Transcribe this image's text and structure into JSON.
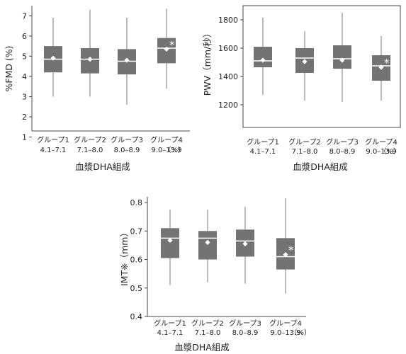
{
  "chart_data": [
    {
      "type": "box",
      "id": "fmd",
      "ylabel": "%FMD (%)",
      "xlabel": "血漿DHA組成",
      "unit_suffix": "（%）",
      "ylim": [
        1.3,
        7.5
      ],
      "yticks": [
        "1",
        "2",
        "3",
        "4",
        "5",
        "6",
        "7"
      ],
      "categories": [
        {
          "name": "グループ1",
          "range": "4.1–7.1"
        },
        {
          "name": "グループ2",
          "range": "7.1–8.0"
        },
        {
          "name": "グループ3",
          "range": "8.0–8.9"
        },
        {
          "name": "グループ4",
          "range": "9.0–13.9"
        }
      ],
      "boxes": [
        {
          "min": 3.0,
          "q1": 4.2,
          "median": 4.85,
          "q3": 5.5,
          "max": 6.9,
          "mean": 4.9,
          "star": ""
        },
        {
          "min": 3.0,
          "q1": 4.15,
          "median": 4.85,
          "q3": 5.4,
          "max": 7.3,
          "mean": 4.85,
          "star": ""
        },
        {
          "min": 2.6,
          "q1": 4.1,
          "median": 4.75,
          "q3": 5.35,
          "max": 6.9,
          "mean": 4.8,
          "star": ""
        },
        {
          "min": 3.4,
          "q1": 4.65,
          "median": 5.4,
          "q3": 5.9,
          "max": 7.35,
          "mean": 5.35,
          "star": "*"
        }
      ]
    },
    {
      "type": "box",
      "id": "pwv",
      "ylabel": "PWV（mm/秒）",
      "xlabel": "血漿DHA組成",
      "unit_suffix": "（%）",
      "ylim": [
        1040,
        1900
      ],
      "yticks": [
        "1200",
        "1400",
        "1600",
        "1800"
      ],
      "categories": [
        {
          "name": "グループ1",
          "range": "4.1–7.1"
        },
        {
          "name": "グループ2",
          "range": "7.1–8.0"
        },
        {
          "name": "グループ3",
          "range": "8.0–8.9"
        },
        {
          "name": "グループ4",
          "range": "9.0–13.9"
        }
      ],
      "boxes": [
        {
          "min": 1270,
          "q1": 1465,
          "median": 1510,
          "q3": 1610,
          "max": 1815,
          "mean": 1515,
          "star": ""
        },
        {
          "min": 1230,
          "q1": 1425,
          "median": 1530,
          "q3": 1600,
          "max": 1720,
          "mean": 1505,
          "star": ""
        },
        {
          "min": 1220,
          "q1": 1455,
          "median": 1525,
          "q3": 1620,
          "max": 1850,
          "mean": 1515,
          "star": ""
        },
        {
          "min": 1230,
          "q1": 1370,
          "median": 1475,
          "q3": 1550,
          "max": 1685,
          "mean": 1465,
          "star": "*"
        }
      ]
    },
    {
      "type": "box",
      "id": "imt",
      "ylabel": "IMT※（mm）",
      "xlabel": "血漿DHA組成",
      "unit_suffix": "（%）",
      "ylim": [
        0.4,
        0.82
      ],
      "yticks": [
        "0.4",
        "0.5",
        "0.6",
        "0.7",
        "0.8"
      ],
      "categories": [
        {
          "name": "グループ1",
          "range": "4.1–7.1"
        },
        {
          "name": "グループ2",
          "range": "7.1–8.0"
        },
        {
          "name": "グループ3",
          "range": "8.0–8.9"
        },
        {
          "name": "グループ4",
          "range": "9.0–13.9"
        }
      ],
      "boxes": [
        {
          "min": 0.51,
          "q1": 0.605,
          "median": 0.675,
          "q3": 0.71,
          "max": 0.775,
          "mean": 0.667,
          "star": ""
        },
        {
          "min": 0.52,
          "q1": 0.6,
          "median": 0.675,
          "q3": 0.7,
          "max": 0.775,
          "mean": 0.66,
          "star": ""
        },
        {
          "min": 0.515,
          "q1": 0.61,
          "median": 0.665,
          "q3": 0.705,
          "max": 0.785,
          "mean": 0.655,
          "star": ""
        },
        {
          "min": 0.48,
          "q1": 0.565,
          "median": 0.61,
          "q3": 0.675,
          "max": 0.815,
          "mean": 0.617,
          "star": "*"
        }
      ]
    }
  ]
}
